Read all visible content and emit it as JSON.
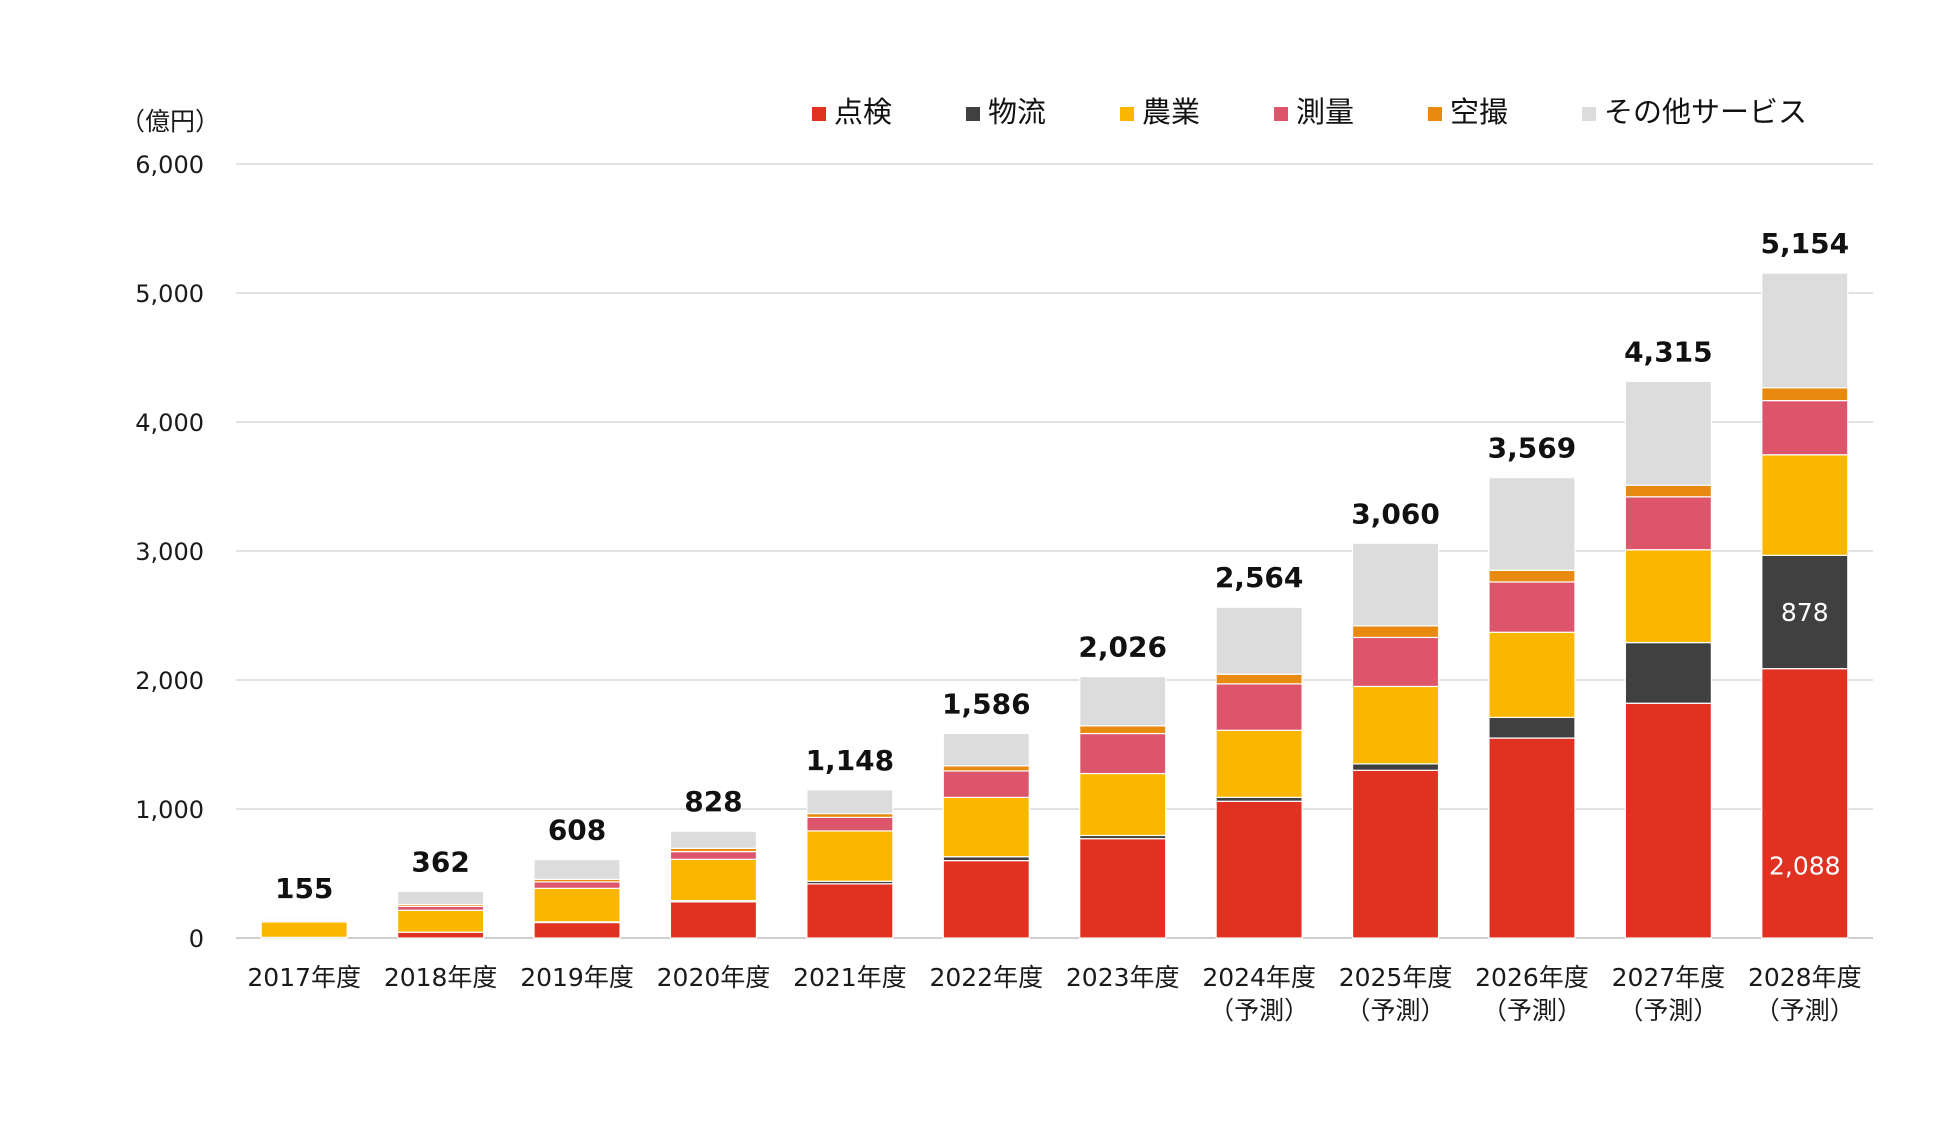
{
  "chart_data": {
    "type": "bar",
    "stacked": true,
    "unit_label": "（億円）",
    "categories": [
      [
        "2017年度"
      ],
      [
        "2018年度"
      ],
      [
        "2019年度"
      ],
      [
        "2020年度"
      ],
      [
        "2021年度"
      ],
      [
        "2022年度"
      ],
      [
        "2023年度"
      ],
      [
        "2024年度",
        "（予測）"
      ],
      [
        "2025年度",
        "（予測）"
      ],
      [
        "2026年度",
        "（予測）"
      ],
      [
        "2027年度",
        "（予測）"
      ],
      [
        "2028年度",
        "（予測）"
      ]
    ],
    "ylim": [
      0,
      6000
    ],
    "yticks": [
      0,
      1000,
      2000,
      3000,
      4000,
      5000,
      6000
    ],
    "ytick_labels": [
      "0",
      "1,000",
      "2,000",
      "3,000",
      "4,000",
      "5,000",
      "6,000"
    ],
    "grid": true,
    "legend_position": "top-right",
    "series": [
      {
        "name": "点検",
        "color": "#e03121",
        "values": [
          5,
          45,
          120,
          280,
          420,
          600,
          770,
          1060,
          1300,
          1550,
          1820,
          2088
        ]
      },
      {
        "name": "物流",
        "color": "#404040",
        "values": [
          0,
          0,
          5,
          10,
          20,
          30,
          25,
          30,
          50,
          160,
          470,
          878
        ]
      },
      {
        "name": "農業",
        "color": "#fbb700",
        "values": [
          120,
          170,
          260,
          320,
          390,
          460,
          480,
          520,
          600,
          660,
          720,
          780
        ]
      },
      {
        "name": "測量",
        "color": "#dc556b",
        "values": [
          10,
          30,
          50,
          60,
          105,
          205,
          310,
          360,
          380,
          390,
          410,
          420
        ]
      },
      {
        "name": "空撮",
        "color": "#e88a10",
        "values": [
          10,
          15,
          20,
          25,
          30,
          40,
          60,
          75,
          90,
          90,
          90,
          100
        ]
      },
      {
        "name": "その他サービス",
        "color": "#dcdcdc",
        "values": [
          10,
          102,
          153,
          133,
          183,
          251,
          381,
          519,
          640,
          719,
          805,
          888
        ]
      }
    ],
    "totals": [
      155,
      362,
      608,
      828,
      1148,
      1586,
      2026,
      2564,
      3060,
      3569,
      4315,
      5154
    ],
    "total_labels": [
      "155",
      "362",
      "608",
      "828",
      "1,148",
      "1,586",
      "2,026",
      "2,564",
      "3,060",
      "3,569",
      "4,315",
      "5,154"
    ],
    "segment_annotations": [
      {
        "category_index": 11,
        "series_index": 0,
        "text": "2,088"
      },
      {
        "category_index": 11,
        "series_index": 1,
        "text": "878"
      }
    ]
  }
}
